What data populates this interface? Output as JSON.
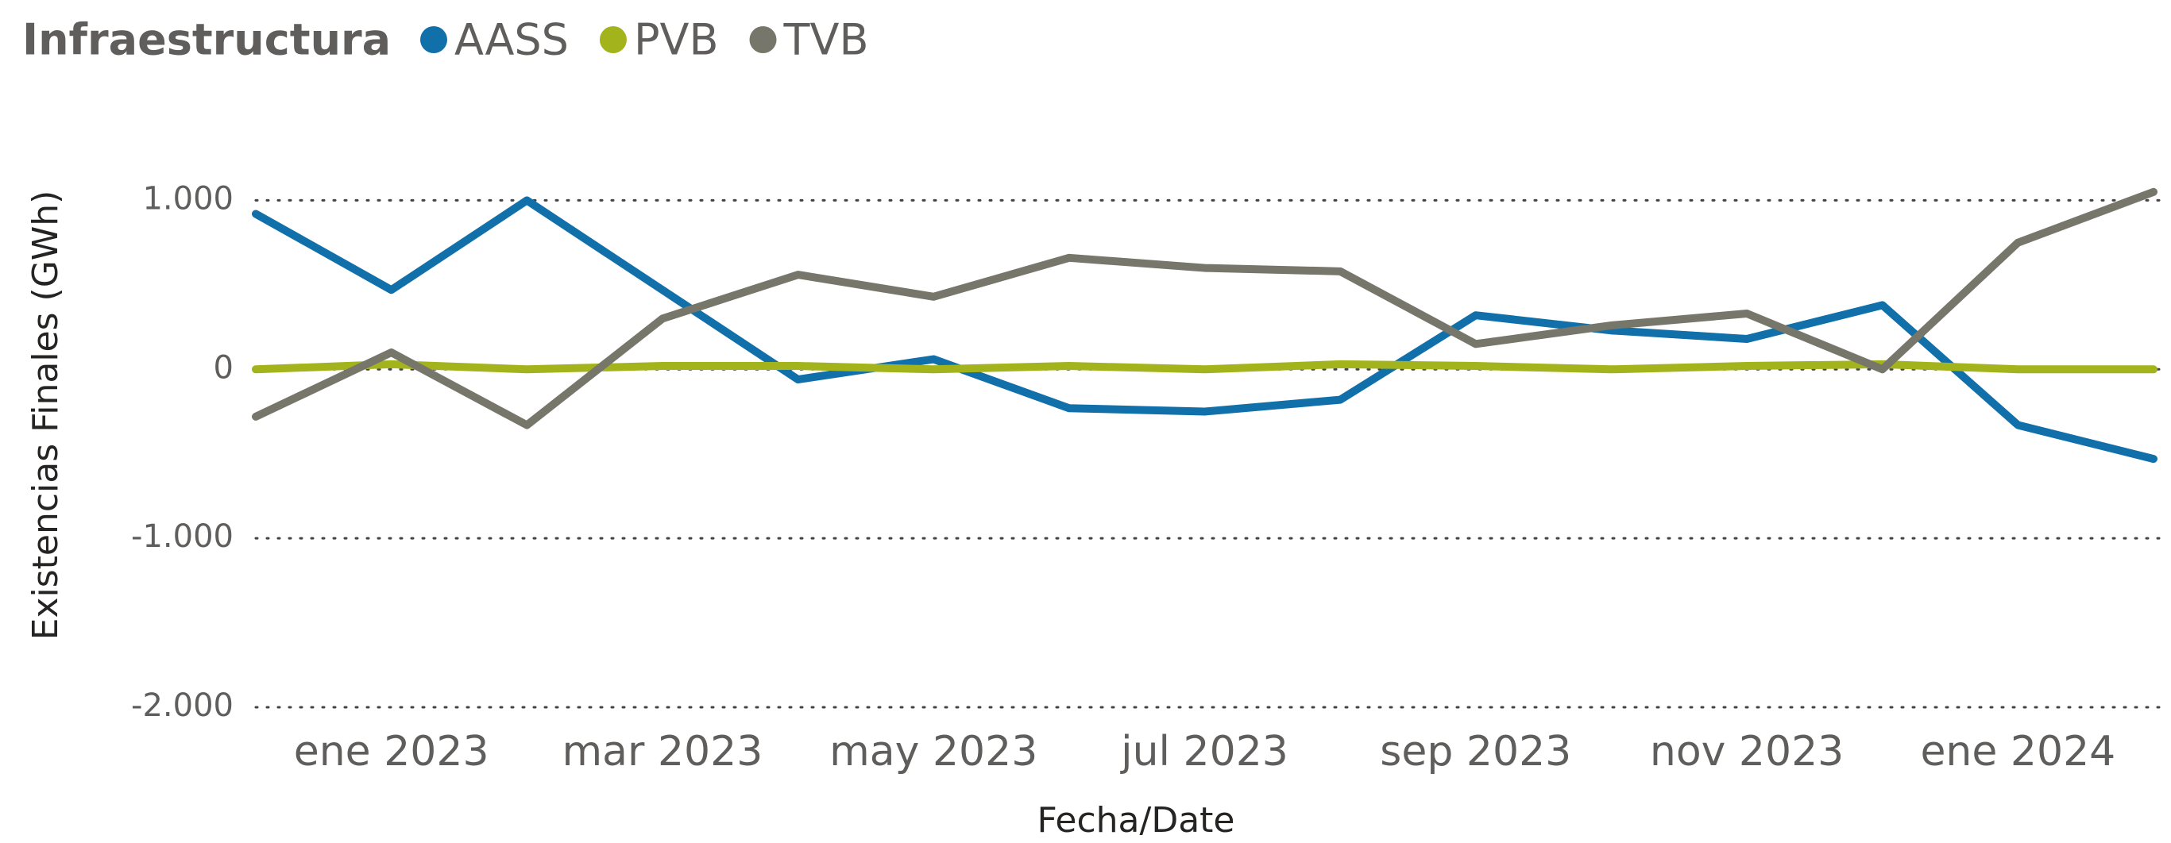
{
  "chart_data": {
    "type": "line",
    "title": "Infraestructura",
    "x_label": "Fecha/Date",
    "y_label": "Existencias Finales (GWh)",
    "x": [
      "2022-12",
      "2023-01",
      "2023-02",
      "2023-03",
      "2023-04",
      "2023-05",
      "2023-06",
      "2023-07",
      "2023-08",
      "2023-09",
      "2023-10",
      "2023-11",
      "2023-12",
      "2024-01",
      "2024-02"
    ],
    "series": [
      {
        "name": "AASS",
        "color": "#1170aa",
        "values": [
          920,
          470,
          1000,
          470,
          -60,
          60,
          -230,
          -250,
          -180,
          320,
          230,
          180,
          380,
          -330,
          -530
        ]
      },
      {
        "name": "PVB",
        "color": "#a3b31b",
        "values": [
          0,
          30,
          0,
          20,
          20,
          0,
          20,
          0,
          30,
          20,
          0,
          20,
          30,
          0,
          0
        ]
      },
      {
        "name": "TVB",
        "color": "#76766a",
        "values": [
          -280,
          100,
          -330,
          300,
          560,
          430,
          660,
          600,
          580,
          150,
          260,
          330,
          0,
          750,
          1050
        ]
      }
    ],
    "xlim": [
      "2022-12",
      "2024-02"
    ],
    "xticks": [
      {
        "value": "2023-01",
        "label": "ene 2023"
      },
      {
        "value": "2023-03",
        "label": "mar 2023"
      },
      {
        "value": "2023-05",
        "label": "may 2023"
      },
      {
        "value": "2023-07",
        "label": "jul 2023"
      },
      {
        "value": "2023-09",
        "label": "sep 2023"
      },
      {
        "value": "2023-11",
        "label": "nov 2023"
      },
      {
        "value": "2024-01",
        "label": "ene 2024"
      }
    ],
    "ylim": [
      -2000,
      1500
    ],
    "yticks": [
      {
        "value": -2000,
        "label": "-2.000"
      },
      {
        "value": -1000,
        "label": "-1.000"
      },
      0,
      {
        "value": 1000,
        "label": "1.000"
      }
    ],
    "grid": true,
    "legend": "top"
  }
}
